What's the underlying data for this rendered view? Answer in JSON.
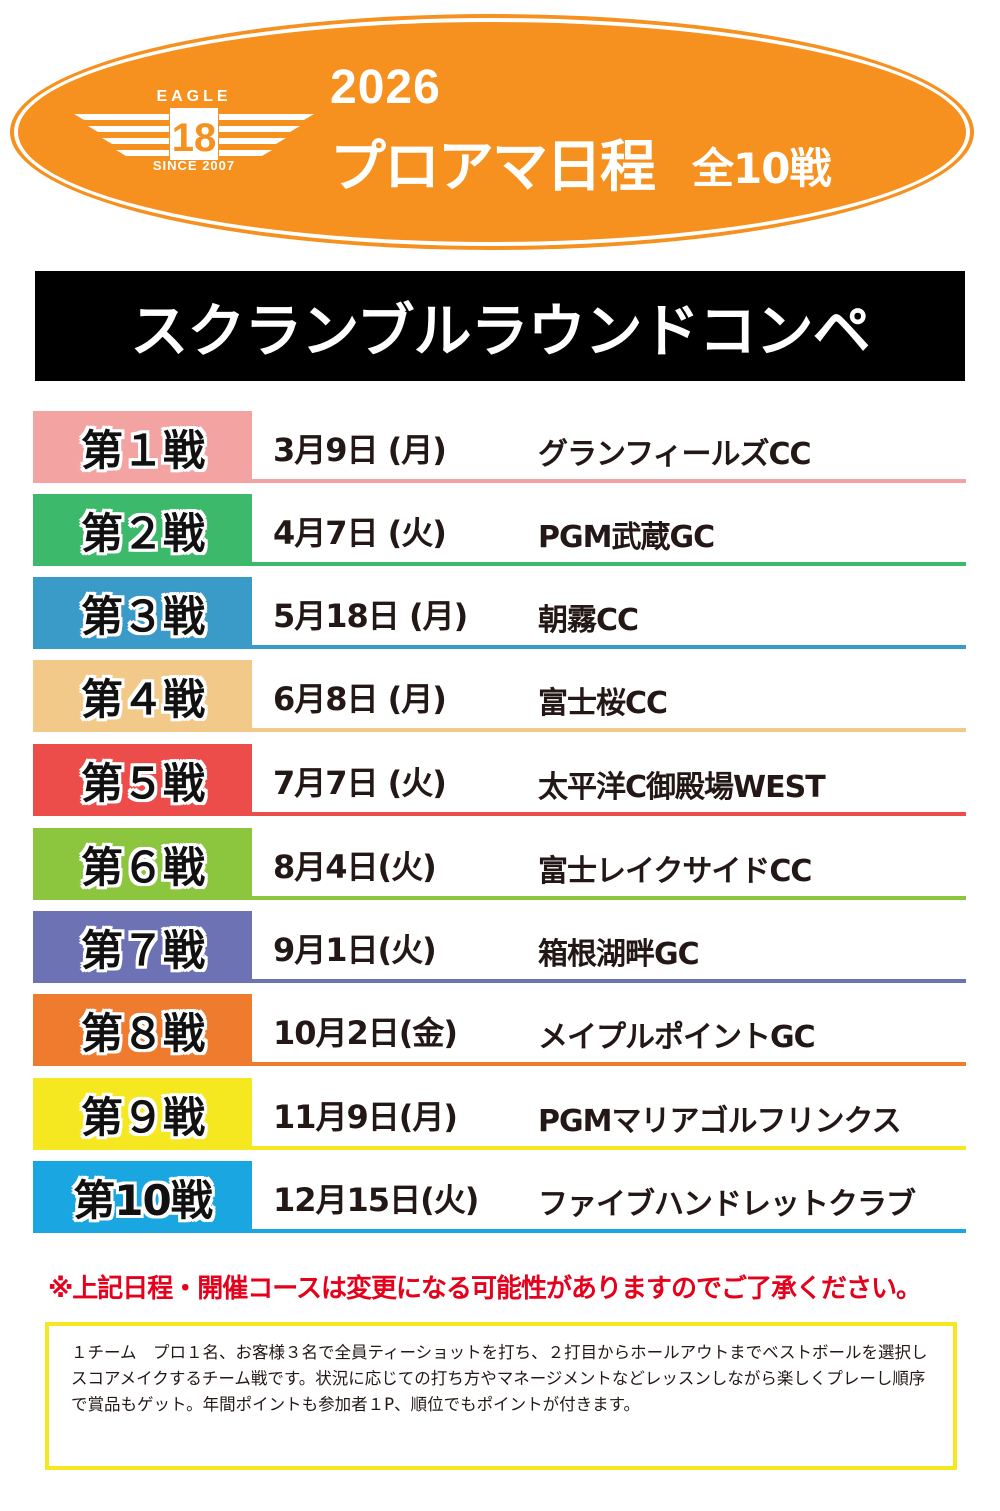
{
  "header": {
    "logo_top": "EAGLE",
    "logo_number": "18",
    "logo_bottom": "SINCE 2007",
    "year": "2026",
    "title": "プロアマ日程",
    "count": "全10戦"
  },
  "banner": "スクランブルラウンドコンペ",
  "rounds": [
    {
      "label": "第１戦",
      "date": "3月9日 (月)",
      "course": "グランフィールズCC",
      "color": "#f3a4a2"
    },
    {
      "label": "第２戦",
      "date": "4月7日 (火)",
      "course": "PGM武蔵GC",
      "color": "#3cb96b"
    },
    {
      "label": "第３戦",
      "date": "5月18日 (月)",
      "course": "朝霧CC",
      "color": "#3a9bc8"
    },
    {
      "label": "第４戦",
      "date": "6月8日 (月)",
      "course": "富士桜CC",
      "color": "#f3c98a"
    },
    {
      "label": "第５戦",
      "date": "7月7日 (火)",
      "course": "太平洋C御殿場WEST",
      "color": "#ec4d4b"
    },
    {
      "label": "第６戦",
      "date": "8月4日(火)",
      "course": "富士レイクサイドCC",
      "color": "#8cc63e"
    },
    {
      "label": "第７戦",
      "date": "9月1日(火)",
      "course": "箱根湖畔GC",
      "color": "#6c72b4"
    },
    {
      "label": "第８戦",
      "date": "10月2日(金)",
      "course": "メイプルポイントGC",
      "color": "#ef7b2f"
    },
    {
      "label": "第９戦",
      "date": "11月9日(月)",
      "course": "PGMマリアゴルフリンクス",
      "color": "#f5e821"
    },
    {
      "label": "第10戦",
      "date": "12月15日(火)",
      "course": "ファイブハンドレットクラブ",
      "color": "#1aa6e0"
    }
  ],
  "notice": "※上記日程・開催コースは変更になる可能性がありますのでご了承ください。",
  "description": "１チーム　プロ１名、お客様３名で全員ティーショットを打ち、２打目からホールアウトまでベストボールを選択しスコアメイクするチーム戦です。状況に応じての打ち方やマネージメントなどレッスンしながら楽しくプレーし順序で賞品もゲット。年間ポイントも参加者１P、順位でもポイントが付きます。"
}
